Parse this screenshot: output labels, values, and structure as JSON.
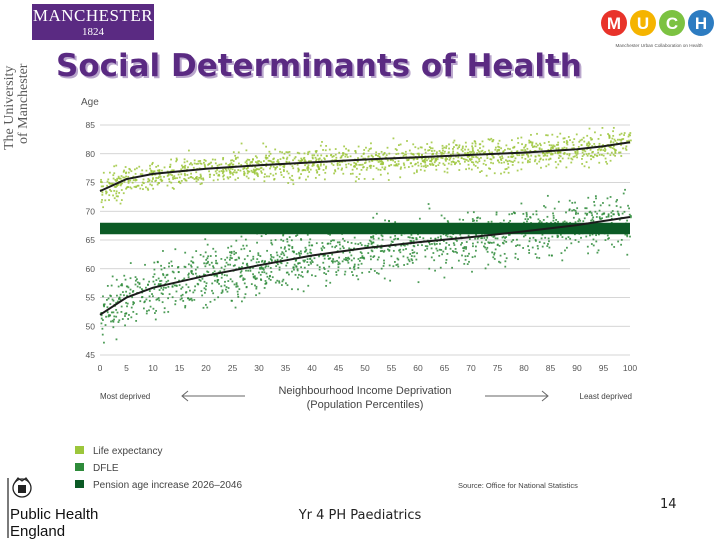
{
  "slide": {
    "title": "Social Determinants of Health",
    "footer": "Yr 4 PH Paediatrics",
    "page_number": "14"
  },
  "logos": {
    "manchester_line1": "MANCHESTER",
    "manchester_line2": "1824",
    "university_vertical": [
      "The University",
      "of Manchester"
    ],
    "much_letters": [
      "M",
      "U",
      "C",
      "H"
    ],
    "much_tagline": "Manchester Urban Collaboration on Health",
    "phe": [
      "Public Health",
      "England"
    ]
  },
  "colors": {
    "purple": "#5a2a82",
    "life_expectancy": "#9cc63b",
    "dfle": "#2e8b3a",
    "pension": "#0b5a25",
    "trend": "#1b1b1b"
  },
  "chart_data": {
    "type": "scatter",
    "ylabel": "Age",
    "xlabel": "Neighbourhood Income Deprivation",
    "xlabel_sub": "(Population Percentiles)",
    "x_left_label": "Most deprived",
    "x_right_label": "Least deprived",
    "xlim": [
      0,
      100
    ],
    "ylim": [
      45,
      85
    ],
    "x_ticks": [
      0,
      5,
      10,
      15,
      20,
      25,
      30,
      35,
      40,
      45,
      50,
      55,
      60,
      65,
      70,
      75,
      80,
      85,
      90,
      95,
      100
    ],
    "y_ticks": [
      45,
      50,
      55,
      60,
      65,
      70,
      75,
      80,
      85
    ],
    "grid": "horizontal",
    "series": [
      {
        "name": "Life expectancy",
        "trend": [
          [
            0,
            73.5
          ],
          [
            5,
            75.6
          ],
          [
            10,
            76.5
          ],
          [
            20,
            77.4
          ],
          [
            30,
            78.0
          ],
          [
            40,
            78.5
          ],
          [
            50,
            79.0
          ],
          [
            60,
            79.4
          ],
          [
            70,
            79.8
          ],
          [
            80,
            80.2
          ],
          [
            90,
            80.8
          ],
          [
            95,
            81.3
          ],
          [
            100,
            82.0
          ]
        ]
      },
      {
        "name": "DFLE",
        "trend": [
          [
            0,
            52.0
          ],
          [
            5,
            55.0
          ],
          [
            10,
            56.7
          ],
          [
            20,
            58.8
          ],
          [
            30,
            60.6
          ],
          [
            40,
            62.3
          ],
          [
            50,
            63.6
          ],
          [
            60,
            64.6
          ],
          [
            70,
            65.5
          ],
          [
            80,
            66.5
          ],
          [
            90,
            67.6
          ],
          [
            95,
            68.3
          ],
          [
            100,
            69.0
          ]
        ]
      }
    ],
    "band": {
      "name": "Pension age increase 2026–2046",
      "range": [
        66,
        68
      ]
    },
    "source": "Source: Office for National Statistics"
  }
}
